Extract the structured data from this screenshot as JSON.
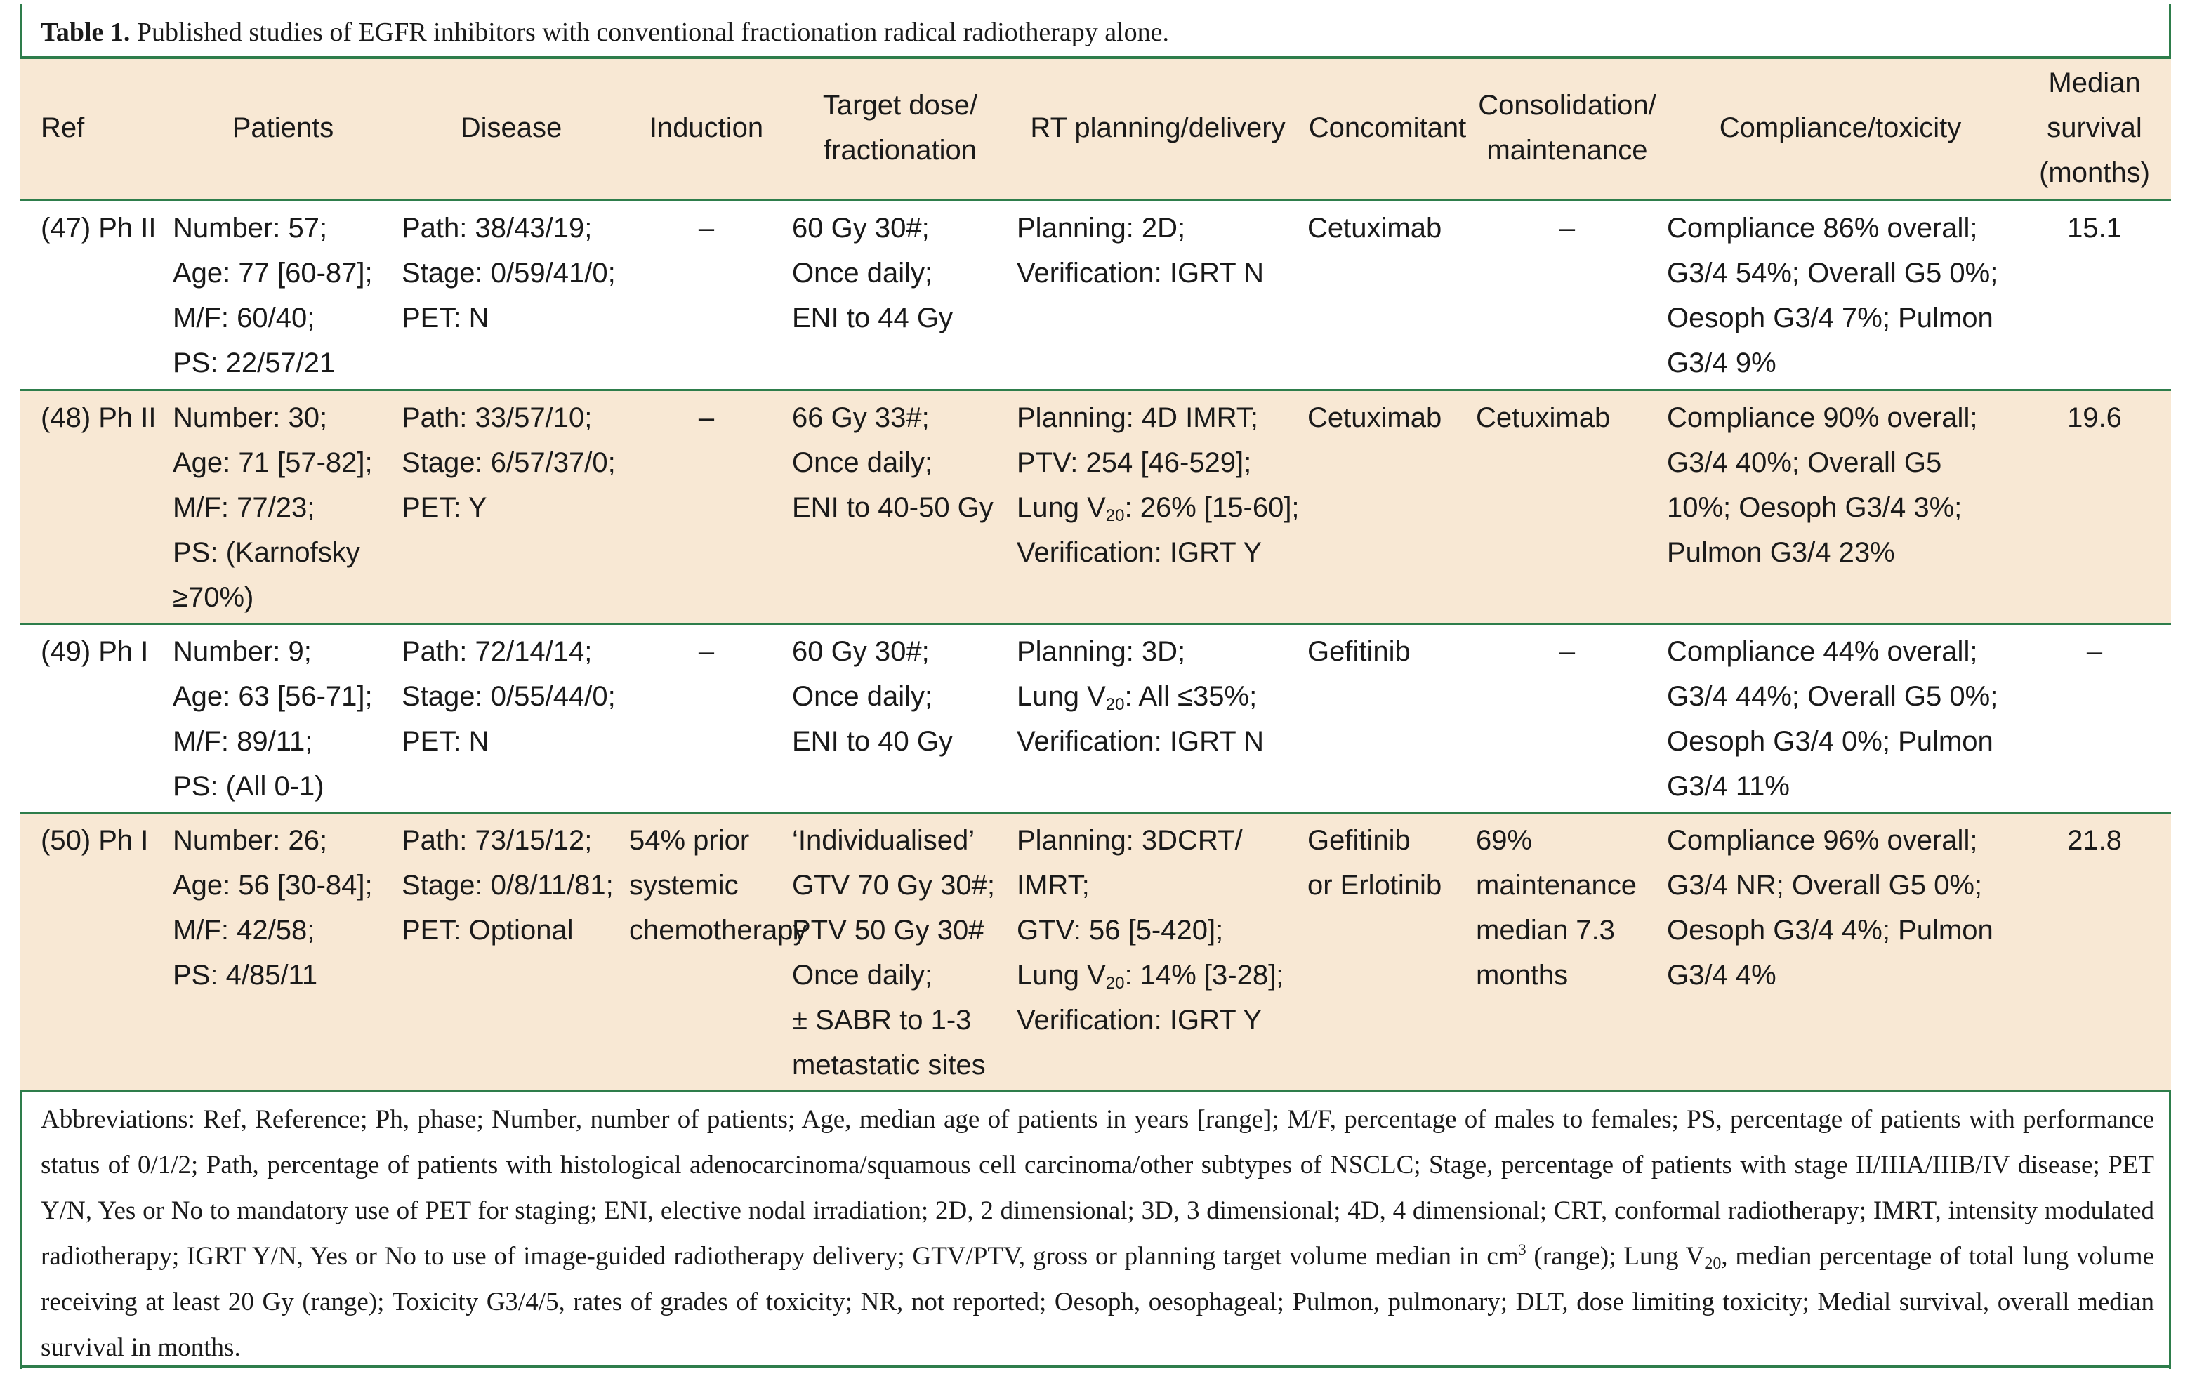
{
  "caption": {
    "label": "Table 1.",
    "text": " Published studies of EGFR inhibitors with conventional fractionation radical radiotherapy alone."
  },
  "colors": {
    "rule": "#2e7d4b",
    "tint": "#f8e8d4"
  },
  "headers": [
    {
      "lines": [
        "Ref"
      ]
    },
    {
      "lines": [
        "Patients"
      ]
    },
    {
      "lines": [
        "Disease"
      ]
    },
    {
      "lines": [
        "Induction"
      ]
    },
    {
      "lines": [
        "Target dose/",
        "fractionation"
      ]
    },
    {
      "lines": [
        "RT planning/delivery"
      ]
    },
    {
      "lines": [
        "Concomitant"
      ]
    },
    {
      "lines": [
        "Consolidation/",
        "maintenance"
      ]
    },
    {
      "lines": [
        "Compliance/toxicity"
      ]
    },
    {
      "lines": [
        "Median",
        "survival",
        "(months)"
      ]
    }
  ],
  "rows": [
    {
      "ref": "(47) Ph II",
      "patients": [
        "Number: 57;",
        "Age: 77 [60-87];",
        "M/F: 60/40;",
        "PS: 22/57/21"
      ],
      "disease": [
        "Path: 38/43/19;",
        "Stage: 0/59/41/0;",
        "PET: N"
      ],
      "induction": [
        "–"
      ],
      "target": [
        "60 Gy 30#;",
        "Once daily;",
        "ENI to 44 Gy"
      ],
      "rt": [
        "Planning: 2D;",
        "Verification: IGRT N"
      ],
      "concomitant": [
        "Cetuximab"
      ],
      "consolidation": [
        "–"
      ],
      "compliance": [
        "Compliance 86% overall;",
        "G3/4 54%; Overall G5 0%;",
        "Oesoph G3/4 7%; Pulmon",
        "G3/4 9%"
      ],
      "survival": "15.1"
    },
    {
      "ref": "(48) Ph II",
      "patients": [
        "Number: 30;",
        "Age: 71 [57-82];",
        "M/F: 77/23;",
        "PS: (Karnofsky",
        "≥70%)"
      ],
      "disease": [
        "Path: 33/57/10;",
        "Stage: 6/57/37/0;",
        "PET: Y"
      ],
      "induction": [
        "–"
      ],
      "target": [
        "66 Gy 33#;",
        "Once daily;",
        "ENI to 40-50 Gy"
      ],
      "rt": [
        "Planning: 4D IMRT;",
        "PTV: 254 [46-529];",
        "Lung V20: 26% [15-60];",
        "Verification: IGRT Y"
      ],
      "concomitant": [
        "Cetuximab"
      ],
      "consolidation": [
        "Cetuximab"
      ],
      "compliance": [
        "Compliance 90% overall;",
        "G3/4 40%; Overall G5",
        "10%; Oesoph G3/4 3%;",
        "Pulmon G3/4 23%"
      ],
      "survival": "19.6"
    },
    {
      "ref": "(49) Ph I",
      "patients": [
        "Number: 9;",
        "Age: 63 [56-71];",
        "M/F: 89/11;",
        "PS: (All 0-1)"
      ],
      "disease": [
        "Path: 72/14/14;",
        "Stage: 0/55/44/0;",
        "PET: N"
      ],
      "induction": [
        "–"
      ],
      "target": [
        "60 Gy 30#;",
        "Once daily;",
        "ENI to 40 Gy"
      ],
      "rt": [
        "Planning: 3D;",
        "Lung V20: All ≤35%;",
        "Verification: IGRT N"
      ],
      "concomitant": [
        "Gefitinib"
      ],
      "consolidation": [
        "–"
      ],
      "compliance": [
        "Compliance 44% overall;",
        "G3/4 44%; Overall G5 0%;",
        "Oesoph G3/4 0%; Pulmon",
        "G3/4 11%"
      ],
      "survival": "–"
    },
    {
      "ref": "(50) Ph I",
      "patients": [
        "Number: 26;",
        "Age: 56 [30-84];",
        "M/F: 42/58;",
        "PS: 4/85/11"
      ],
      "disease": [
        "Path: 73/15/12;",
        "Stage: 0/8/11/81;",
        "PET: Optional"
      ],
      "induction": [
        "54% prior",
        "systemic",
        "chemotherapy"
      ],
      "target": [
        "‘Individualised’",
        "GTV 70 Gy 30#;",
        "PTV 50 Gy 30#",
        "Once daily;",
        "± SABR to 1-3",
        "metastatic sites"
      ],
      "rt": [
        "Planning: 3DCRT/",
        "IMRT;",
        "GTV: 56 [5-420];",
        "Lung V20: 14% [3-28];",
        "Verification: IGRT Y"
      ],
      "concomitant": [
        "Gefitinib",
        "or Erlotinib"
      ],
      "consolidation": [
        "69%",
        "maintenance",
        "median 7.3",
        "months"
      ],
      "compliance": [
        "Compliance 96% overall;",
        "G3/4 NR; Overall G5 0%;",
        "Oesoph G3/4 4%; Pulmon",
        "G3/4 4%"
      ],
      "survival": "21.8"
    }
  ],
  "footnote": "Abbreviations: Ref, Reference; Ph, phase; Number, number of patients; Age, median age of patients in years [range]; M/F, percentage of males to females; PS, percentage of patients with performance status of 0/1/2; Path, percentage of patients with histological adenocarcinoma/squamous cell carcinoma/other subtypes of NSCLC; Stage, percentage of patients with stage II/IIIA/IIIB/IV disease; PET Y/N, Yes or No to mandatory use of PET for staging; ENI, elective nodal irradiation; 2D, 2 dimensional; 3D, 3 dimensional; 4D, 4 dimensional; CRT, conformal radiotherapy; IMRT, intensity modulated radiotherapy; IGRT Y/N, Yes or No to use of image-guided radiotherapy delivery; GTV/PTV, gross or planning target volume median in cm3 (range); Lung V20, median percentage of total lung volume receiving at least 20 Gy (range); Toxicity G3/4/5, rates of grades of toxicity; NR, not reported; Oesoph, oesophageal; Pulmon, pulmonary; DLT, dose limiting toxicity; Medial survival, overall median survival in months."
}
